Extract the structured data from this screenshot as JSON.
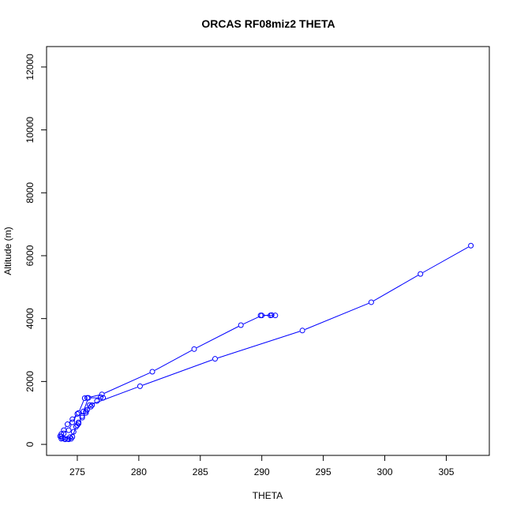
{
  "chart_data": {
    "type": "line",
    "title": "ORCAS RF08miz2 THETA",
    "xlabel": "THETA",
    "ylabel": "Altitude (m)",
    "xlim": [
      272.5,
      308.5
    ],
    "ylim": [
      -350,
      12650
    ],
    "xticks": [
      275,
      280,
      285,
      290,
      295,
      300,
      305
    ],
    "yticks": [
      0,
      2000,
      4000,
      6000,
      8000,
      10000,
      12000
    ],
    "grid": false,
    "legend": "none",
    "series_color": "#0000ff",
    "series": [
      {
        "marker": "open-circle",
        "x": [
          290.0,
          288.3,
          284.5,
          281.1,
          277.0,
          275.8,
          275.6,
          275.1,
          274.6,
          274.2,
          273.9,
          273.7,
          273.6,
          273.7,
          274.0,
          274.3,
          274.5,
          274.4,
          274.7,
          275.0,
          275.1,
          275.4,
          275.7,
          275.8,
          276.1,
          276.2,
          276.6,
          276.9,
          277.1,
          275.9,
          275.5,
          275.0,
          274.6,
          274.3,
          273.9,
          273.7,
          273.8,
          274.0,
          274.2,
          274.6,
          274.9,
          275.1,
          275.4,
          275.7,
          276.0,
          280.1,
          286.2,
          293.3,
          298.9,
          302.9,
          307.0
        ],
        "y": [
          4100,
          3790,
          3030,
          2310,
          1590,
          1480,
          1470,
          1000,
          800,
          640,
          450,
          330,
          260,
          180,
          170,
          160,
          180,
          230,
          400,
          610,
          700,
          850,
          1000,
          1100,
          1200,
          1250,
          1380,
          1500,
          1480,
          1480,
          1050,
          970,
          700,
          450,
          350,
          250,
          200,
          160,
          170,
          240,
          560,
          660,
          900,
          1050,
          1250,
          1850,
          2720,
          3620,
          4520,
          5420,
          6320
        ]
      },
      {
        "marker": "open-circle",
        "x": [
          290.7,
          291.1,
          289.9,
          290.8
        ],
        "y": [
          4100,
          4100,
          4100,
          4110
        ]
      }
    ]
  }
}
